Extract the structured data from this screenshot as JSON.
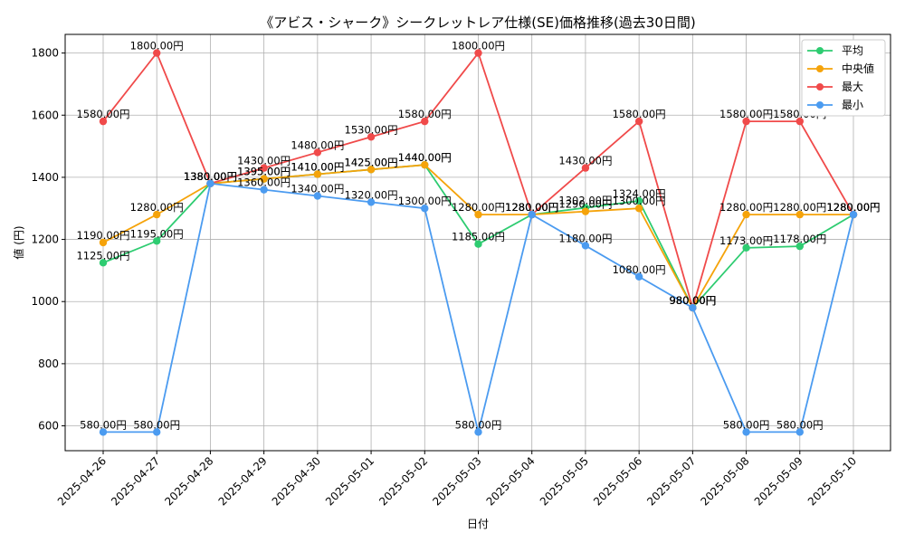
{
  "chart_data": {
    "type": "line",
    "title": "《アビス・シャーク》シークレットレア仕様(SE)価格推移(過去30日間)",
    "xlabel": "日付",
    "ylabel": "値 (円)",
    "ylim": [
      520,
      1860
    ],
    "yticks": [
      600,
      800,
      1000,
      1200,
      1400,
      1600,
      1800
    ],
    "categories": [
      "2025-04-26",
      "2025-04-27",
      "2025-04-28",
      "2025-04-29",
      "2025-04-30",
      "2025-05-01",
      "2025-05-02",
      "2025-05-03",
      "2025-05-04",
      "2025-05-05",
      "2025-05-06",
      "2025-05-07",
      "2025-05-08",
      "2025-05-09",
      "2025-05-10"
    ],
    "grid": true,
    "legend_position": "top-right",
    "label_suffix": "円",
    "series": [
      {
        "name": "平均",
        "color": "#2ecc71",
        "values": [
          1125,
          1195,
          1380,
          1395,
          1410,
          1425,
          1440,
          1185,
          1280,
          1302,
          1324,
          980,
          1173,
          1178,
          1280
        ]
      },
      {
        "name": "中央値",
        "color": "#f5a30a",
        "values": [
          1190,
          1280,
          1380,
          1395,
          1410,
          1425,
          1440,
          1280,
          1280,
          1290,
          1300,
          980,
          1280,
          1280,
          1280
        ]
      },
      {
        "name": "最大",
        "color": "#f04a4a",
        "values": [
          1580,
          1800,
          1380,
          1430,
          1480,
          1530,
          1580,
          1800,
          1280,
          1430,
          1580,
          980,
          1580,
          1580,
          1280
        ]
      },
      {
        "name": "最小",
        "color": "#4b9bf0",
        "values": [
          580,
          580,
          1380,
          1360,
          1340,
          1320,
          1300,
          580,
          1280,
          1180,
          1080,
          980,
          580,
          580,
          1280
        ]
      }
    ]
  }
}
